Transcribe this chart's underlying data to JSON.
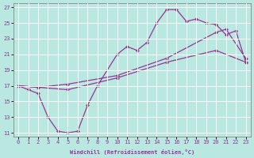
{
  "xlabel": "Windchill (Refroidissement éolien,°C)",
  "bg_color": "#b8e8e0",
  "line_color": "#993399",
  "grid_color": "#ffffff",
  "xlim": [
    -0.5,
    23.5
  ],
  "ylim": [
    10.5,
    27.5
  ],
  "xticks": [
    0,
    1,
    2,
    3,
    4,
    5,
    6,
    7,
    8,
    9,
    10,
    11,
    12,
    13,
    14,
    15,
    16,
    17,
    18,
    19,
    20,
    21,
    22,
    23
  ],
  "yticks": [
    11,
    13,
    15,
    17,
    19,
    21,
    23,
    25,
    27
  ],
  "line1_x": [
    0,
    1,
    2,
    3,
    4,
    5,
    6,
    7,
    8,
    10,
    11,
    12,
    13,
    14,
    15,
    16,
    17,
    18,
    19,
    20,
    21,
    22,
    23
  ],
  "line1_y": [
    17,
    16.5,
    16,
    13,
    11.2,
    11,
    11.2,
    14.5,
    17,
    21,
    22,
    21.5,
    22.5,
    25,
    26.7,
    26.7,
    25.2,
    25.5,
    25,
    24.8,
    23.5,
    24,
    20
  ],
  "line2_x": [
    0,
    2,
    5,
    10,
    15,
    20,
    21,
    23
  ],
  "line2_y": [
    17,
    16.8,
    17.2,
    18.3,
    20.5,
    23.8,
    24.2,
    20.5
  ],
  "line3_x": [
    0,
    5,
    10,
    15,
    20,
    23
  ],
  "line3_y": [
    17,
    16.5,
    18,
    20,
    21.5,
    20
  ]
}
